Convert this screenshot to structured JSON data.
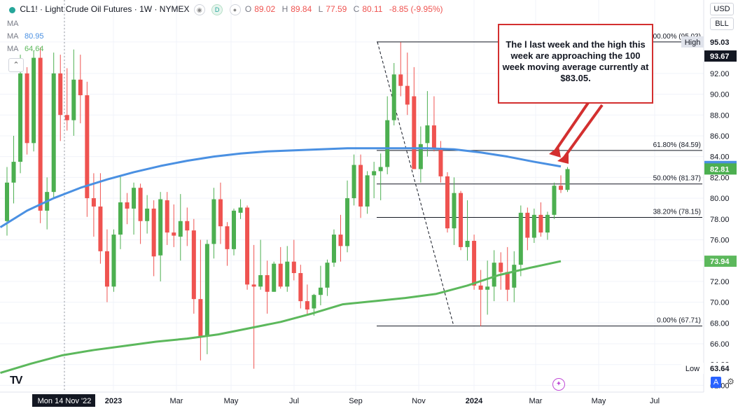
{
  "legend": {
    "symbol": "CL1!",
    "title": "Light Crude Oil Futures",
    "interval": "1W",
    "exchange": "NYMEX",
    "open_label": "O",
    "open": "89.02",
    "high_label": "H",
    "high": "89.84",
    "low_label": "L",
    "low": "77.59",
    "close_label": "C",
    "close": "80.11",
    "change": "-8.85 (-9.95%)",
    "eye_icon": "eye-icon",
    "d_badge": "D",
    "dot_icon": "status-dot-icon"
  },
  "ma_rows": [
    {
      "label": "MA",
      "value": ""
    },
    {
      "label": "MA",
      "value": "80.95"
    },
    {
      "label": "MA",
      "value": "64.64"
    }
  ],
  "axis_buttons": {
    "currency": "USD",
    "unit": "BLL"
  },
  "callout_text": "The l last week and the high this week are approaching the 100 week moving average currently at $83.05.",
  "tv_logo": "TV",
  "a_label": "A",
  "colors": {
    "up": "#4caf50",
    "down": "#ef5350",
    "ma100": "#4a90e2",
    "ma200": "#5cb85c",
    "callout": "#d32f2f",
    "fib": "#131722"
  },
  "chart_data": {
    "type": "candlestick",
    "ylim": [
      62.5,
      96.5
    ],
    "y_ticks": [
      "62.00",
      "64.00",
      "66.00",
      "68.00",
      "70.00",
      "72.00",
      "74.00",
      "76.00",
      "78.00",
      "80.00",
      "82.00",
      "84.00",
      "86.00",
      "88.00",
      "90.00",
      "92.00",
      "95.03"
    ],
    "x_labels": [
      "Mon 14 Nov '22",
      "2023",
      "Mar",
      "May",
      "Jul",
      "Sep",
      "Nov",
      "2024",
      "Mar",
      "May",
      "Jul"
    ],
    "candles": [
      [
        77.8,
        83.0,
        76.4,
        81.5
      ],
      [
        81.5,
        86.0,
        79.5,
        83.5
      ],
      [
        83.5,
        93.8,
        82.4,
        92.0
      ],
      [
        92.0,
        92.6,
        84.2,
        85.3
      ],
      [
        85.3,
        94.2,
        84.5,
        93.5
      ],
      [
        93.5,
        94.5,
        77.6,
        78.8
      ],
      [
        78.8,
        82.0,
        77.0,
        80.6
      ],
      [
        80.6,
        94.0,
        80.0,
        92.0
      ],
      [
        92.0,
        93.8,
        85.5,
        88.0
      ],
      [
        88.0,
        92.5,
        86.5,
        87.5
      ],
      [
        87.5,
        94.3,
        86.0,
        91.4
      ],
      [
        91.4,
        93.8,
        87.2,
        89.9
      ],
      [
        89.9,
        91.2,
        78.2,
        80.0
      ],
      [
        80.0,
        82.4,
        76.3,
        79.2
      ],
      [
        79.2,
        82.4,
        73.7,
        74.9
      ],
      [
        74.9,
        77.0,
        70.0,
        71.5
      ],
      [
        71.5,
        77.0,
        71.0,
        76.5
      ],
      [
        76.5,
        82.2,
        75.1,
        79.6
      ],
      [
        79.6,
        80.5,
        77.5,
        79.0
      ],
      [
        79.0,
        81.5,
        76.5,
        81.0
      ],
      [
        81.0,
        81.4,
        75.6,
        77.8
      ],
      [
        77.8,
        80.3,
        76.6,
        79.0
      ],
      [
        79.0,
        79.8,
        72.5,
        74.4
      ],
      [
        74.5,
        80.6,
        72.0,
        79.9
      ],
      [
        79.8,
        80.6,
        75.5,
        76.7
      ],
      [
        76.7,
        79.4,
        75.3,
        76.4
      ],
      [
        76.3,
        80.4,
        74.0,
        77.8
      ],
      [
        77.8,
        79.1,
        75.4,
        76.9
      ],
      [
        76.9,
        78.0,
        68.9,
        70.3
      ],
      [
        70.3,
        76.0,
        64.4,
        66.7
      ],
      [
        66.7,
        76.0,
        65.0,
        75.6
      ],
      [
        75.6,
        81.0,
        74.2,
        79.9
      ],
      [
        79.9,
        81.5,
        75.6,
        77.3
      ],
      [
        77.3,
        77.7,
        73.5,
        75.1
      ],
      [
        75.1,
        79.0,
        74.5,
        78.8
      ],
      [
        78.6,
        79.9,
        78.0,
        79.1
      ],
      [
        79.1,
        79.3,
        71.2,
        71.7
      ],
      [
        71.7,
        75.5,
        63.6,
        71.5
      ],
      [
        71.5,
        76.0,
        71.2,
        72.6
      ],
      [
        72.6,
        74.0,
        68.9,
        71.0
      ],
      [
        71.0,
        73.9,
        71.0,
        73.7
      ],
      [
        73.7,
        75.3,
        71.3,
        71.5
      ],
      [
        71.5,
        75.4,
        71.0,
        73.9
      ],
      [
        73.9,
        76.0,
        72.1,
        72.8
      ],
      [
        72.8,
        73.6,
        69.4,
        70.1
      ],
      [
        70.1,
        71.7,
        68.8,
        69.3
      ],
      [
        69.4,
        70.8,
        68.7,
        70.7
      ],
      [
        70.7,
        73.5,
        69.7,
        71.4
      ],
      [
        71.4,
        74.1,
        70.6,
        73.8
      ],
      [
        73.8,
        77.0,
        73.4,
        76.5
      ],
      [
        76.5,
        78.4,
        73.9,
        75.4
      ],
      [
        75.4,
        81.7,
        74.8,
        80.0
      ],
      [
        80.0,
        84.2,
        79.3,
        83.2
      ],
      [
        83.2,
        84.2,
        78.1,
        79.2
      ],
      [
        79.2,
        82.6,
        78.5,
        82.2
      ],
      [
        82.2,
        83.5,
        80.0,
        82.6
      ],
      [
        82.6,
        84.3,
        79.8,
        83.0
      ],
      [
        83.0,
        89.8,
        82.3,
        87.5
      ],
      [
        87.5,
        93.0,
        87.0,
        91.9
      ],
      [
        91.9,
        95.0,
        89.8,
        90.8
      ],
      [
        90.8,
        94.0,
        88.0,
        89.0
      ],
      [
        89.8,
        92.6,
        83.0,
        82.8
      ],
      [
        82.8,
        86.9,
        81.5,
        85.2
      ],
      [
        85.3,
        90.3,
        84.0,
        87.0
      ],
      [
        87.0,
        89.8,
        84.5,
        84.7
      ],
      [
        84.7,
        85.5,
        81.5,
        82.1
      ],
      [
        82.1,
        82.5,
        76.7,
        77.1
      ],
      [
        77.1,
        82.0,
        75.5,
        80.5
      ],
      [
        80.5,
        80.7,
        75.0,
        75.3
      ],
      [
        75.3,
        79.8,
        74.0,
        75.9
      ],
      [
        75.9,
        76.5,
        71.2,
        71.6
      ],
      [
        71.6,
        73.1,
        67.7,
        71.2
      ],
      [
        71.2,
        74.0,
        68.8,
        71.5
      ],
      [
        71.5,
        75.0,
        70.1,
        73.8
      ],
      [
        73.8,
        74.8,
        71.2,
        72.9
      ],
      [
        72.9,
        75.3,
        70.1,
        71.2
      ],
      [
        71.4,
        74.9,
        70.0,
        73.6
      ],
      [
        73.6,
        79.3,
        72.5,
        78.6
      ],
      [
        78.6,
        79.1,
        75.0,
        76.2
      ],
      [
        76.2,
        79.0,
        75.7,
        78.4
      ],
      [
        78.4,
        79.6,
        76.3,
        76.7
      ],
      [
        76.7,
        78.7,
        76.0,
        78.4
      ],
      [
        78.4,
        81.5,
        78.0,
        81.2
      ],
      [
        81.2,
        82.2,
        80.5,
        80.8
      ],
      [
        80.8,
        83.0,
        80.6,
        82.8
      ]
    ],
    "ma100": [
      77.2,
      78.8,
      80.0,
      81.0,
      81.8,
      82.5,
      83.1,
      83.6,
      84.0,
      84.3,
      84.5,
      84.6,
      84.7,
      84.8,
      84.8,
      84.8,
      84.8,
      84.7,
      84.4,
      84.0,
      83.5,
      83.05
    ],
    "ma200": [
      63.2,
      64.1,
      64.9,
      65.4,
      65.8,
      66.2,
      66.5,
      66.9,
      67.5,
      68.1,
      68.9,
      69.8,
      70.1,
      70.4,
      70.8,
      71.6,
      72.6,
      73.3,
      73.94
    ],
    "fib_levels": [
      {
        "label": "100.00% (95.03)",
        "value": 95.03
      },
      {
        "label": "61.80% (84.59)",
        "value": 84.59
      },
      {
        "label": "50.00% (81.37)",
        "value": 81.37
      },
      {
        "label": "38.20% (78.15)",
        "value": 78.15
      },
      {
        "label": "0.00% (67.71)",
        "value": 67.71
      }
    ],
    "price_tags": [
      {
        "label": "High",
        "value": "95.03"
      },
      {
        "label": "",
        "value": "93.67"
      },
      {
        "label": "",
        "value": "83.05"
      },
      {
        "label": "",
        "value": "82.81"
      },
      {
        "label": "",
        "value": "73.94"
      },
      {
        "label": "Low",
        "value": "63.64"
      }
    ]
  }
}
